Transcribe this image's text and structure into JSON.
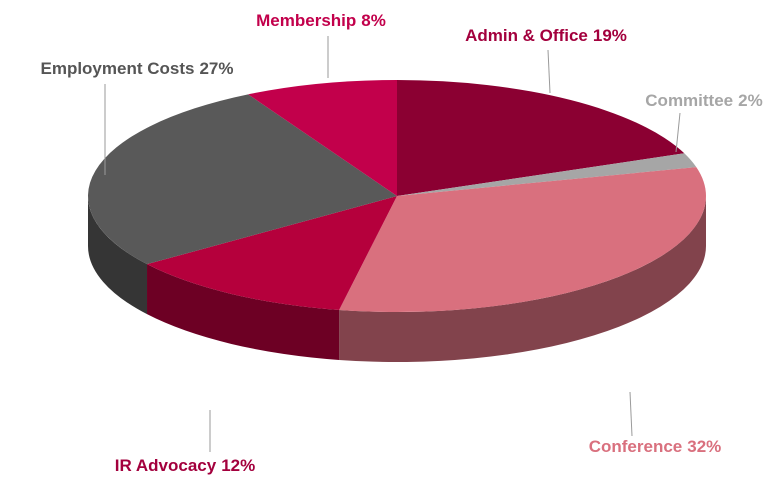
{
  "chart_data": {
    "type": "pie",
    "categories": [
      "Admin & Office",
      "Committee",
      "Conference",
      "IR Advocacy",
      "Employment Costs",
      "Membership"
    ],
    "values": [
      19,
      2,
      32,
      12,
      27,
      8
    ],
    "value_labels": [
      "19%",
      "2%",
      "32%",
      "12%",
      "27%",
      "8%"
    ],
    "colors": [
      "#8b0032",
      "#a6a6a6",
      "#d9707e",
      "#b5003c",
      "#595959",
      "#c2004b"
    ],
    "label_colors": [
      "#a3003d",
      "#a6a6a6",
      "#d9707e",
      "#a3003d",
      "#555555",
      "#c2004b"
    ]
  }
}
